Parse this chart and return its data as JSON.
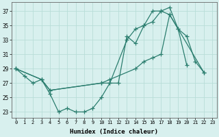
{
  "xlabel": "Humidex (Indice chaleur)",
  "bg_color": "#d8f0ee",
  "grid_color": "#b8ddd8",
  "line_color": "#2a7d6e",
  "xlim": [
    -0.5,
    23.5
  ],
  "ylim": [
    22.2,
    38.2
  ],
  "yticks": [
    23,
    25,
    27,
    29,
    31,
    33,
    35,
    37
  ],
  "xticks": [
    0,
    1,
    2,
    3,
    4,
    5,
    6,
    7,
    8,
    9,
    10,
    11,
    12,
    13,
    14,
    15,
    16,
    17,
    18,
    19,
    20,
    21,
    22,
    23
  ],
  "line1_x": [
    0,
    1,
    2,
    3,
    4,
    5,
    6,
    7,
    8,
    9,
    10,
    11,
    12,
    13,
    14,
    15,
    16,
    17,
    18,
    19,
    20
  ],
  "line1_y": [
    29.0,
    28.0,
    27.0,
    27.5,
    25.5,
    23.0,
    23.5,
    23.0,
    23.0,
    23.5,
    25.0,
    27.0,
    27.0,
    33.5,
    32.5,
    35.0,
    37.0,
    37.0,
    37.5,
    34.5,
    29.5
  ],
  "line2_x": [
    0,
    3,
    4,
    10,
    11,
    13,
    14,
    15,
    16,
    17,
    18,
    19,
    20,
    21,
    22
  ],
  "line2_y": [
    29.0,
    27.5,
    26.0,
    27.0,
    27.0,
    33.0,
    34.5,
    35.0,
    35.5,
    37.0,
    36.5,
    34.5,
    33.5,
    30.0,
    28.5
  ],
  "line3_x": [
    0,
    3,
    4,
    10,
    11,
    14,
    15,
    16,
    17,
    18,
    22
  ],
  "line3_y": [
    29.0,
    27.5,
    26.0,
    27.0,
    27.5,
    29.0,
    30.0,
    30.5,
    31.0,
    36.5,
    28.5
  ]
}
